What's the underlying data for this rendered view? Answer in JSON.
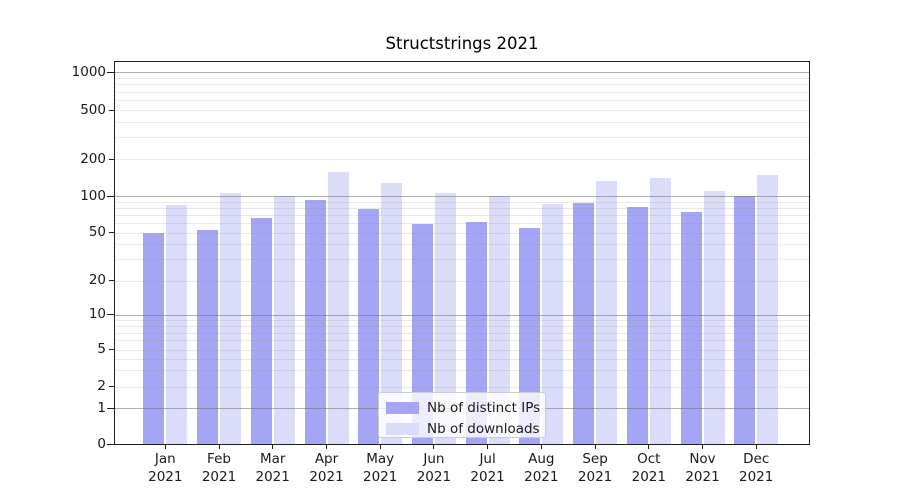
{
  "title": "Structstrings 2021",
  "chart_data": {
    "type": "bar",
    "title": "Structstrings 2021",
    "categories": [
      "Jan",
      "Feb",
      "Mar",
      "Apr",
      "May",
      "Jun",
      "Jul",
      "Aug",
      "Sep",
      "Oct",
      "Nov",
      "Dec"
    ],
    "x_year": "2021",
    "series": [
      {
        "name": "Nb of distinct IPs",
        "color": "#a5a5f5",
        "values": [
          50,
          52,
          66,
          93,
          78,
          59,
          61,
          55,
          88,
          82,
          74,
          100
        ]
      },
      {
        "name": "Nb of downloads",
        "color": "#dbdbfa",
        "values": [
          85,
          105,
          101,
          158,
          127,
          105,
          100,
          86,
          132,
          141,
          110,
          148
        ]
      }
    ],
    "y_scale": "symlog",
    "y_ticks": [
      0,
      1,
      2,
      5,
      10,
      20,
      50,
      100,
      200,
      500,
      1000
    ],
    "y_major_ticks": [
      0,
      1,
      10,
      100,
      1000
    ],
    "ylim": [
      0,
      1200
    ],
    "xlabel": "",
    "ylabel": "",
    "grid": true,
    "legend_position": "lower center"
  }
}
